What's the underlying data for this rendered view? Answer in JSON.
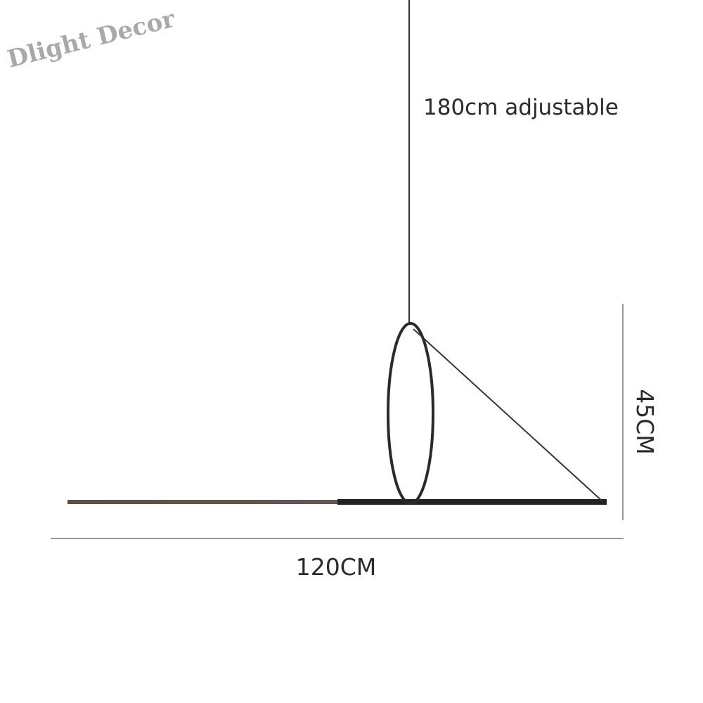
{
  "watermark": "Dlight Decor",
  "labels": {
    "cord_length": "180cm adjustable",
    "width": "120CM",
    "height": "45CM"
  },
  "colors": {
    "fixture": "#222222",
    "dimension_lines": "#9a9a9a",
    "bar_left": "#5a4a40"
  }
}
